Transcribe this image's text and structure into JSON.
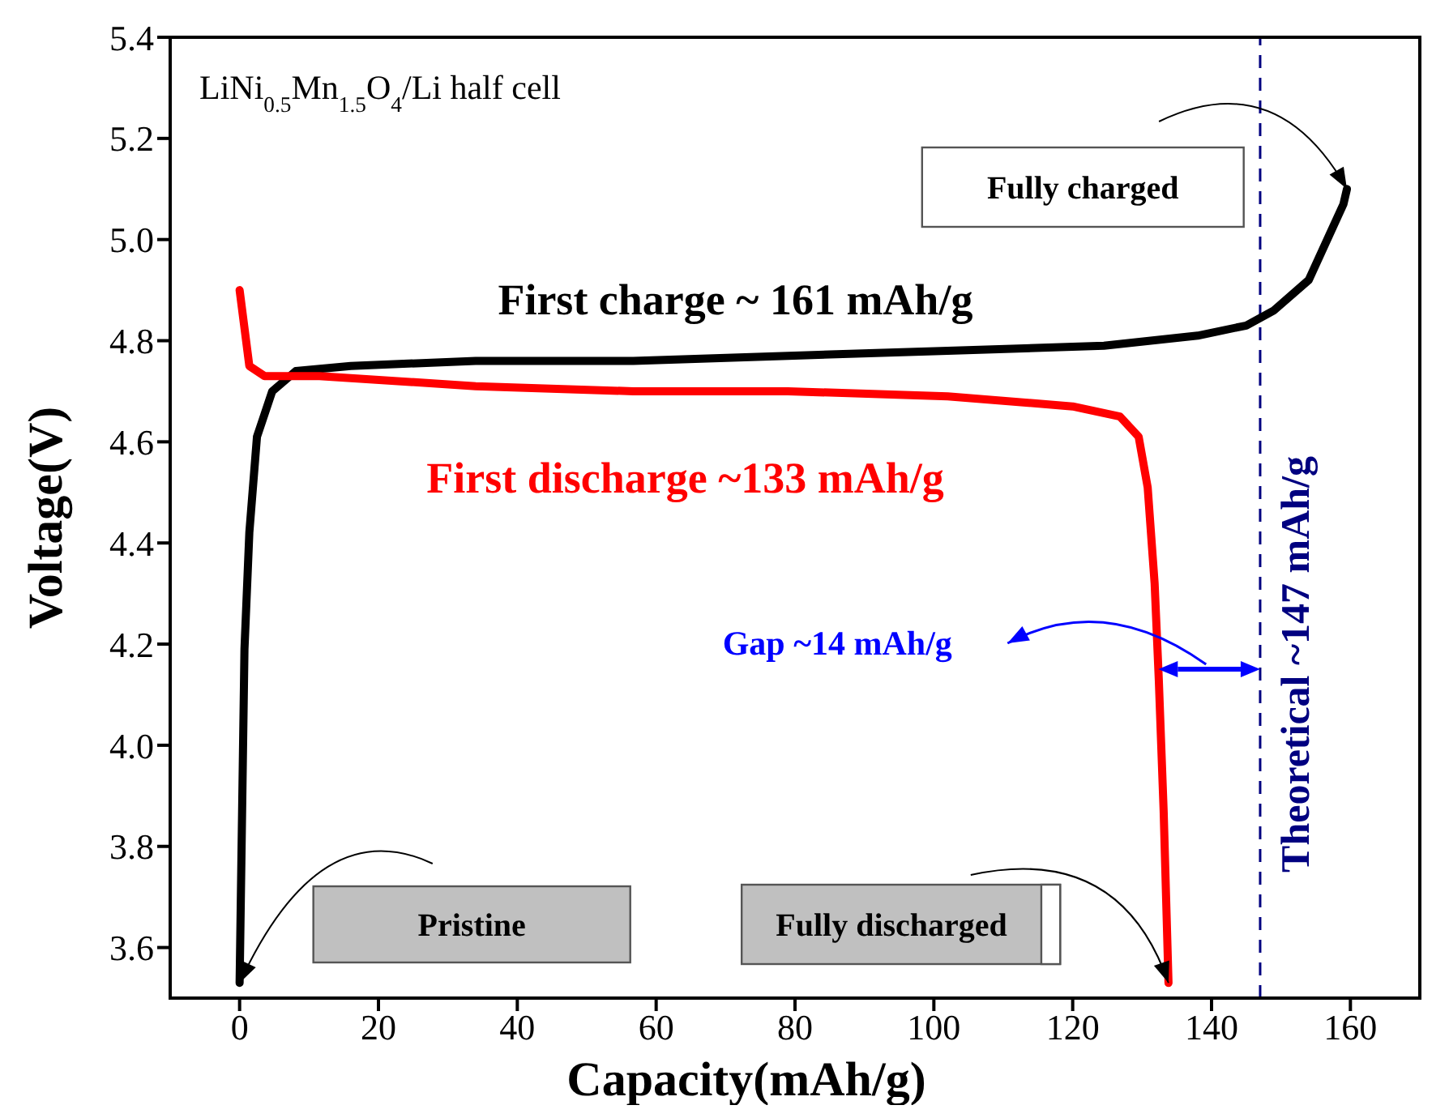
{
  "chart_data": {
    "type": "line",
    "xlabel": "Capacity(mAh/g)",
    "ylabel": "Voltage(V)",
    "xlim": [
      -10,
      170
    ],
    "xticks": [
      0,
      20,
      40,
      60,
      80,
      100,
      120,
      140,
      160
    ],
    "ylim": [
      3.5,
      5.4
    ],
    "yticks": [
      3.6,
      3.8,
      {
        "value": 4,
        "label": "4.0"
      },
      4.2,
      4.4,
      4.6,
      4.8,
      {
        "value": 5,
        "label": "5.0"
      },
      5.2,
      5.4
    ],
    "marker": "none",
    "series": [
      {
        "name": "First charge ~ 161 mAh/g",
        "color": "#000000",
        "x": [
          0,
          0.7,
          1.4,
          2.5,
          4.7,
          8.1,
          16,
          34,
          56.7,
          79,
          102,
          124.5,
          138,
          145,
          149,
          154,
          157,
          159,
          159.5
        ],
        "values": [
          3.53,
          4.19,
          4.42,
          4.61,
          4.7,
          4.74,
          4.75,
          4.76,
          4.76,
          4.77,
          4.78,
          4.79,
          4.81,
          4.83,
          4.86,
          4.92,
          5.01,
          5.07,
          5.1
        ]
      },
      {
        "name": "First discharge ~133 mAh/g",
        "color": "#ff0000",
        "x": [
          0,
          1.4,
          3.6,
          11.5,
          34,
          56.7,
          79,
          102,
          120,
          126.8,
          129.5,
          130.8,
          131.8,
          132.4,
          133.1,
          133.8
        ],
        "values": [
          4.9,
          4.75,
          4.73,
          4.73,
          4.71,
          4.7,
          4.7,
          4.69,
          4.67,
          4.65,
          4.61,
          4.51,
          4.32,
          4.13,
          3.87,
          3.53
        ]
      }
    ],
    "ref_lines": [
      {
        "axis": "x",
        "value": 147,
        "label": "Theoretical ~147 mAh/g",
        "color": "#000080",
        "line_style": "dashed"
      }
    ],
    "annotations": [
      "LiNi$_{0.5}$Mn$_{1.5}$O$_{4}$/Li half cell",
      "Pristine",
      {
        "text": "Fully discharged",
        "x": 133.8,
        "y": 3.53
      },
      "Fully charged",
      "Gap ~14 mAh/g"
    ]
  }
}
